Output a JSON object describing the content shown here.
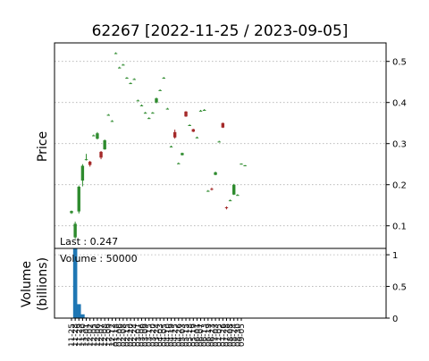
{
  "chart_data": {
    "type": "candlestick",
    "title": "62267   [2022-11-25 / 2023-09-05]",
    "grid": true,
    "price_panel": {
      "ylabel": "Price",
      "ylim": [
        0.045,
        0.545
      ],
      "yticks": [
        0.1,
        0.2,
        0.3,
        0.4,
        0.5
      ],
      "ytick_labels": [
        "0.1",
        "0.2",
        "0.3",
        "0.4",
        "0.5"
      ],
      "annotation": "Last : 0.247",
      "colors": {
        "up": "#2e8b2e",
        "down": "#a52a2a"
      }
    },
    "volume_panel": {
      "ylabel": "Volume\n(billions)",
      "ylim": [
        0,
        1.1
      ],
      "yticks": [
        0,
        0.5,
        1
      ],
      "ytick_labels": [
        "0",
        "0.5",
        "1"
      ],
      "annotation": "Volume : 50000",
      "bar_color": "#1f77b4"
    },
    "x_tick_labels": [
      "11-25",
      "11-28",
      "11-29",
      "11-30",
      "12-01",
      "12-02",
      "12-05",
      "12-06",
      "12-07",
      "12-08",
      "12-09",
      "12-12",
      "01-18",
      "02-06",
      "02-08",
      "02-15",
      "02-20",
      "02-24",
      "03-01",
      "03-06",
      "03-09",
      "03-15",
      "03-20",
      "03-24",
      "04-03",
      "04-05",
      "04-10",
      "04-19",
      "04-25",
      "04-26",
      "05-03",
      "05-15",
      "05-18",
      "05-19",
      "06-01",
      "06-07",
      "06-13",
      "06-19",
      "06-23",
      "07-03",
      "07-05",
      "07-26",
      "07-28",
      "08-08",
      "08-24",
      "08-30",
      "09-05"
    ],
    "series": [
      {
        "date": "11-25",
        "open": 0.131,
        "high": 0.137,
        "low": 0.129,
        "close": 0.136,
        "volume": 0
      },
      {
        "date": "11-28",
        "open": 0.072,
        "high": 0.11,
        "low": 0.068,
        "close": 0.105,
        "volume": 1.1
      },
      {
        "date": "11-29",
        "open": 0.135,
        "high": 0.198,
        "low": 0.13,
        "close": 0.195,
        "volume": 0.22
      },
      {
        "date": "11-30",
        "open": 0.21,
        "high": 0.25,
        "low": 0.196,
        "close": 0.246,
        "volume": 0.06
      },
      {
        "date": "12-01",
        "open": 0.26,
        "high": 0.275,
        "low": 0.259,
        "close": 0.262,
        "volume": 0.01
      },
      {
        "date": "12-02",
        "open": 0.256,
        "high": 0.258,
        "low": 0.244,
        "close": 0.248,
        "volume": 0
      },
      {
        "date": "12-05",
        "open": 0.32,
        "high": 0.322,
        "low": 0.319,
        "close": 0.32,
        "volume": 0
      },
      {
        "date": "12-06",
        "open": 0.312,
        "high": 0.328,
        "low": 0.31,
        "close": 0.325,
        "volume": 0
      },
      {
        "date": "12-07",
        "open": 0.28,
        "high": 0.282,
        "low": 0.262,
        "close": 0.266,
        "volume": 0
      },
      {
        "date": "12-08",
        "open": 0.286,
        "high": 0.31,
        "low": 0.285,
        "close": 0.308,
        "volume": 0
      },
      {
        "date": "12-09",
        "open": 0.37,
        "high": 0.372,
        "low": 0.369,
        "close": 0.37,
        "volume": 0
      },
      {
        "date": "12-12",
        "open": 0.355,
        "high": 0.357,
        "low": 0.354,
        "close": 0.355,
        "volume": 0
      },
      {
        "date": "01-18",
        "open": 0.52,
        "high": 0.522,
        "low": 0.519,
        "close": 0.52,
        "volume": 0
      },
      {
        "date": "02-06",
        "open": 0.485,
        "high": 0.487,
        "low": 0.484,
        "close": 0.485,
        "volume": 0
      },
      {
        "date": "02-08",
        "open": 0.492,
        "high": 0.494,
        "low": 0.491,
        "close": 0.492,
        "volume": 0
      },
      {
        "date": "02-15",
        "open": 0.46,
        "high": 0.462,
        "low": 0.459,
        "close": 0.46,
        "volume": 0
      },
      {
        "date": "02-20",
        "open": 0.447,
        "high": 0.449,
        "low": 0.446,
        "close": 0.447,
        "volume": 0
      },
      {
        "date": "02-24",
        "open": 0.457,
        "high": 0.459,
        "low": 0.456,
        "close": 0.457,
        "volume": 0
      },
      {
        "date": "03-01",
        "open": 0.405,
        "high": 0.407,
        "low": 0.404,
        "close": 0.405,
        "volume": 0
      },
      {
        "date": "03-06",
        "open": 0.393,
        "high": 0.395,
        "low": 0.392,
        "close": 0.393,
        "volume": 0
      },
      {
        "date": "03-09",
        "open": 0.375,
        "high": 0.377,
        "low": 0.374,
        "close": 0.375,
        "volume": 0
      },
      {
        "date": "03-15",
        "open": 0.362,
        "high": 0.364,
        "low": 0.361,
        "close": 0.362,
        "volume": 0
      },
      {
        "date": "03-20",
        "open": 0.375,
        "high": 0.377,
        "low": 0.374,
        "close": 0.375,
        "volume": 0
      },
      {
        "date": "03-24",
        "open": 0.4,
        "high": 0.412,
        "low": 0.398,
        "close": 0.41,
        "volume": 0
      },
      {
        "date": "04-03",
        "open": 0.43,
        "high": 0.432,
        "low": 0.429,
        "close": 0.43,
        "volume": 0
      },
      {
        "date": "04-05",
        "open": 0.46,
        "high": 0.462,
        "low": 0.459,
        "close": 0.46,
        "volume": 0
      },
      {
        "date": "04-10",
        "open": 0.385,
        "high": 0.387,
        "low": 0.384,
        "close": 0.385,
        "volume": 0
      },
      {
        "date": "04-19",
        "open": 0.293,
        "high": 0.295,
        "low": 0.292,
        "close": 0.293,
        "volume": 0
      },
      {
        "date": "04-25",
        "open": 0.328,
        "high": 0.334,
        "low": 0.312,
        "close": 0.315,
        "volume": 0
      },
      {
        "date": "04-26",
        "open": 0.252,
        "high": 0.254,
        "low": 0.251,
        "close": 0.252,
        "volume": 0
      },
      {
        "date": "05-03",
        "open": 0.272,
        "high": 0.278,
        "low": 0.271,
        "close": 0.277,
        "volume": 0
      },
      {
        "date": "05-15",
        "open": 0.378,
        "high": 0.379,
        "low": 0.365,
        "close": 0.366,
        "volume": 0
      },
      {
        "date": "05-18",
        "open": 0.345,
        "high": 0.347,
        "low": 0.344,
        "close": 0.345,
        "volume": 0
      },
      {
        "date": "05-19",
        "open": 0.335,
        "high": 0.336,
        "low": 0.328,
        "close": 0.329,
        "volume": 0
      },
      {
        "date": "06-01",
        "open": 0.315,
        "high": 0.317,
        "low": 0.314,
        "close": 0.315,
        "volume": 0
      },
      {
        "date": "06-07",
        "open": 0.38,
        "high": 0.382,
        "low": 0.379,
        "close": 0.38,
        "volume": 0
      },
      {
        "date": "06-13",
        "open": 0.382,
        "high": 0.384,
        "low": 0.381,
        "close": 0.382,
        "volume": 0
      },
      {
        "date": "06-19",
        "open": 0.185,
        "high": 0.187,
        "low": 0.184,
        "close": 0.185,
        "volume": 0
      },
      {
        "date": "06-23",
        "open": 0.19,
        "high": 0.193,
        "low": 0.186,
        "close": 0.188,
        "volume": 0
      },
      {
        "date": "07-03",
        "open": 0.224,
        "high": 0.232,
        "low": 0.223,
        "close": 0.23,
        "volume": 0
      },
      {
        "date": "07-05",
        "open": 0.305,
        "high": 0.307,
        "low": 0.304,
        "close": 0.305,
        "volume": 0
      },
      {
        "date": "07-26",
        "open": 0.35,
        "high": 0.351,
        "low": 0.338,
        "close": 0.339,
        "volume": 0
      },
      {
        "date": "07-28",
        "open": 0.145,
        "high": 0.147,
        "low": 0.14,
        "close": 0.143,
        "volume": 0
      },
      {
        "date": "08-08",
        "open": 0.162,
        "high": 0.164,
        "low": 0.161,
        "close": 0.162,
        "volume": 0
      },
      {
        "date": "08-24",
        "open": 0.176,
        "high": 0.202,
        "low": 0.175,
        "close": 0.2,
        "volume": 0
      },
      {
        "date": "08-30",
        "open": 0.175,
        "high": 0.177,
        "low": 0.174,
        "close": 0.175,
        "volume": 0
      },
      {
        "date": "09-05",
        "open": 0.251,
        "high": 0.252,
        "low": 0.25,
        "close": 0.251,
        "volume": 0
      },
      {
        "date": "09-05b",
        "open": 0.247,
        "high": 0.248,
        "low": 0.246,
        "close": 0.247,
        "volume": 0
      }
    ]
  }
}
